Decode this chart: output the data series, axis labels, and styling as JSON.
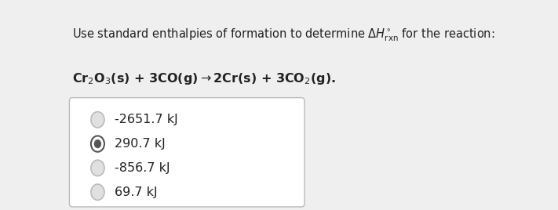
{
  "title_line1": "Use standard enthalpies of formation to determine $\\Delta H^{\\circ}_{\\mathrm{rxn}}$ for the reaction:",
  "title_line2": "Cr$_2$O$_3$(s) + 3CO(g)$\\rightarrow$2Cr(s) + 3CO$_2$(g).",
  "options": [
    "-2651.7 kJ",
    "290.7 kJ",
    "-856.7 kJ",
    "69.7 kJ"
  ],
  "selected_index": 1,
  "background_color": "#efefef",
  "box_color": "#ffffff",
  "box_edge_color": "#bbbbbb",
  "text_color": "#222222",
  "radio_unselected_edge": "#bbbbbb",
  "radio_unselected_fill": "#e0e0e0",
  "radio_selected_fill": "#555555",
  "radio_selected_edge": "#555555",
  "title_fontsize": 10.5,
  "option_fontsize": 11.5,
  "fig_width": 7.11,
  "fig_height": 2.68,
  "dpi": 100
}
